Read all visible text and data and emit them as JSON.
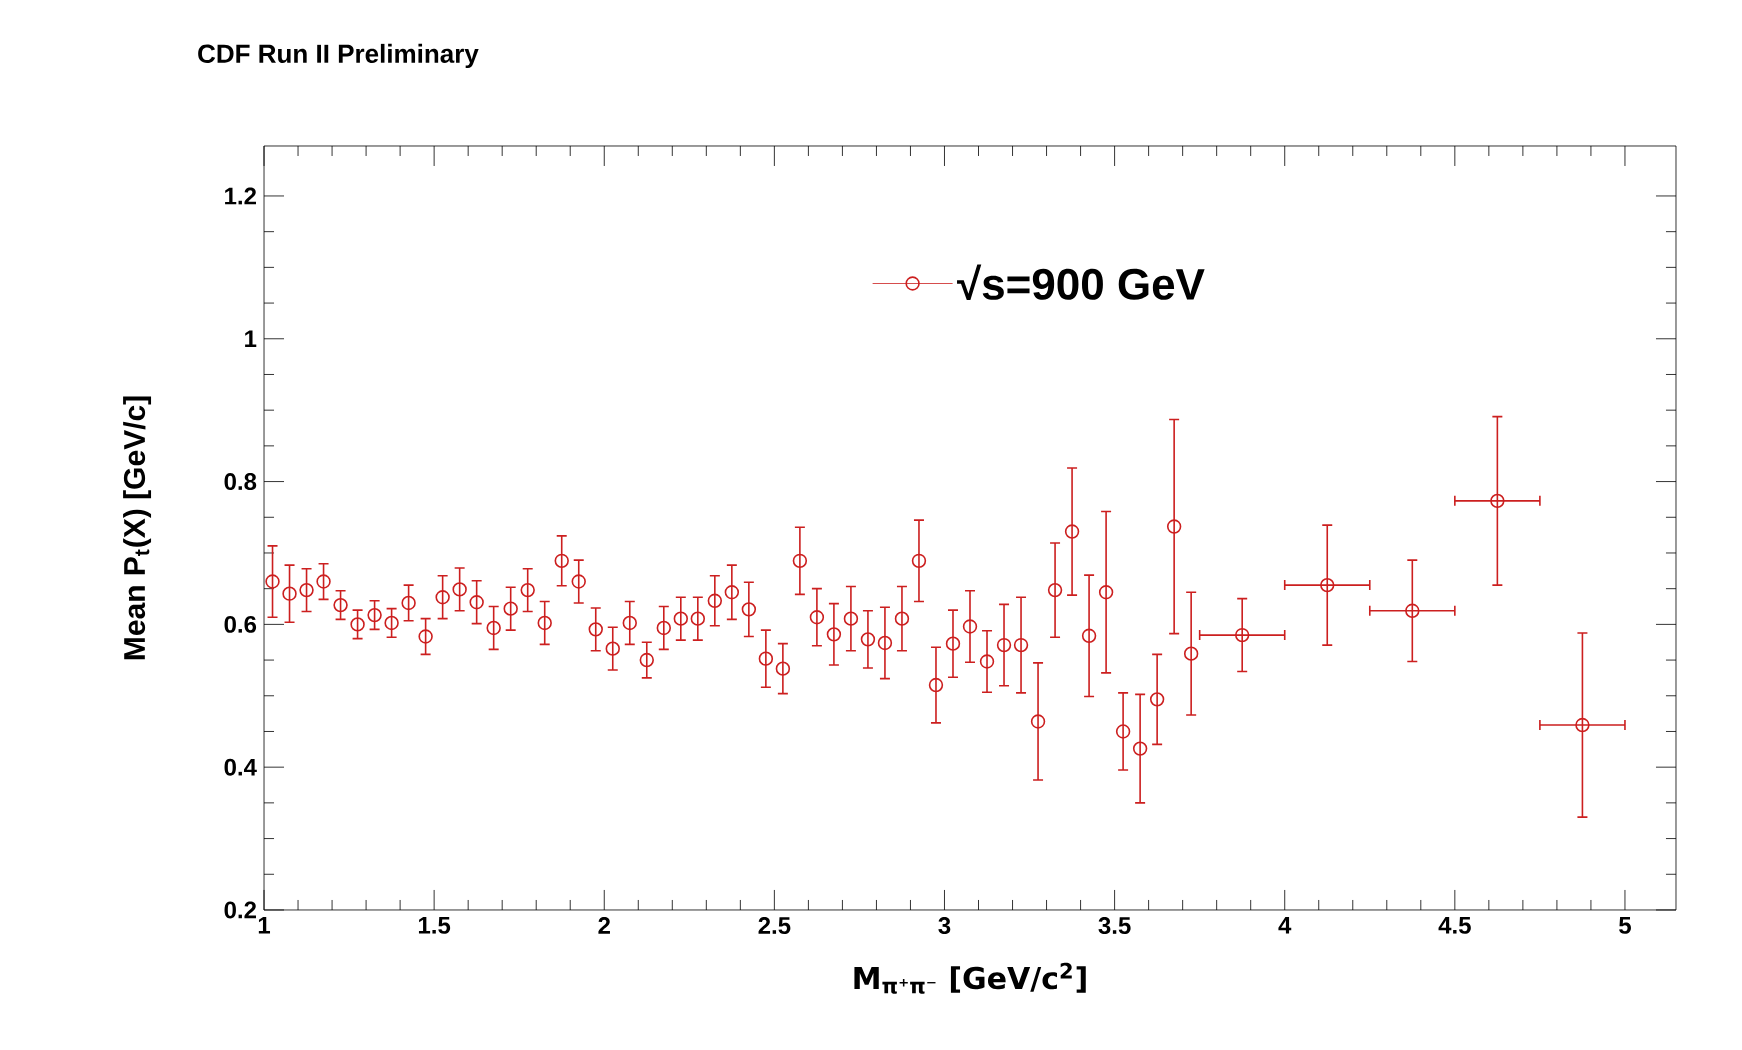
{
  "chart_data": {
    "type": "scatter",
    "title": "CDF Run II Preliminary",
    "xlabel": "M$_{π⁺π⁻}$ [GeV/c$^{2}$]",
    "ylabel": "Mean P$_{t}$(X) [GeV/c]",
    "x": [
      1.025,
      1.075,
      1.125,
      1.175,
      1.225,
      1.275,
      1.325,
      1.375,
      1.425,
      1.475,
      1.525,
      1.575,
      1.625,
      1.675,
      1.725,
      1.775,
      1.825,
      1.875,
      1.925,
      1.975,
      2.025,
      2.075,
      2.125,
      2.175,
      2.225,
      2.275,
      2.325,
      2.375,
      2.425,
      2.475,
      2.525,
      2.575,
      2.625,
      2.675,
      2.725,
      2.775,
      2.825,
      2.875,
      2.925,
      2.975,
      3.025,
      3.075,
      3.125,
      3.175,
      3.225,
      3.275,
      3.325,
      3.375,
      3.425,
      3.475,
      3.525,
      3.575,
      3.625,
      3.675,
      3.725,
      3.875,
      4.125,
      4.375,
      4.625,
      4.875
    ],
    "series": [
      {
        "name": "√s=900 GeV",
        "color": "#cc1f1f",
        "values": [
          0.66,
          0.643,
          0.648,
          0.66,
          0.627,
          0.6,
          0.613,
          0.602,
          0.63,
          0.583,
          0.638,
          0.649,
          0.631,
          0.595,
          0.622,
          0.648,
          0.602,
          0.689,
          0.66,
          0.593,
          0.566,
          0.602,
          0.55,
          0.595,
          0.608,
          0.608,
          0.633,
          0.645,
          0.621,
          0.552,
          0.538,
          0.689,
          0.61,
          0.586,
          0.608,
          0.579,
          0.574,
          0.608,
          0.689,
          0.515,
          0.573,
          0.597,
          0.548,
          0.571,
          0.571,
          0.464,
          0.648,
          0.73,
          0.584,
          0.645,
          0.45,
          0.426,
          0.495,
          0.737,
          0.559,
          0.585,
          0.655,
          0.619,
          0.773,
          0.459
        ],
        "errors": [
          0.05,
          0.04,
          0.03,
          0.025,
          0.02,
          0.02,
          0.02,
          0.02,
          0.025,
          0.025,
          0.03,
          0.03,
          0.03,
          0.03,
          0.03,
          0.03,
          0.03,
          0.035,
          0.03,
          0.03,
          0.03,
          0.03,
          0.025,
          0.03,
          0.03,
          0.03,
          0.035,
          0.038,
          0.038,
          0.04,
          0.035,
          0.047,
          0.04,
          0.043,
          0.045,
          0.04,
          0.05,
          0.045,
          0.057,
          0.053,
          0.047,
          0.05,
          0.043,
          0.057,
          0.067,
          0.082,
          0.066,
          0.089,
          0.085,
          0.113,
          0.054,
          0.076,
          0.063,
          0.15,
          0.086,
          0.051,
          0.084,
          0.071,
          0.118,
          0.129
        ],
        "xerrors": [
          null,
          null,
          null,
          null,
          null,
          null,
          null,
          null,
          null,
          null,
          null,
          null,
          null,
          null,
          null,
          null,
          null,
          null,
          null,
          null,
          null,
          null,
          null,
          null,
          null,
          null,
          null,
          null,
          null,
          null,
          null,
          null,
          null,
          null,
          null,
          null,
          null,
          null,
          null,
          null,
          null,
          null,
          null,
          null,
          null,
          null,
          null,
          null,
          null,
          null,
          null,
          null,
          null,
          null,
          null,
          0.125,
          0.125,
          0.125,
          0.125,
          0.125
        ]
      }
    ],
    "xlim": [
      1,
      5.15
    ],
    "ylim": [
      0.2,
      1.27
    ],
    "xticks": [
      1,
      1.5,
      2,
      2.5,
      3,
      3.5,
      4,
      4.5,
      5
    ],
    "yticks": [
      0.2,
      0.4,
      0.6,
      0.8,
      1,
      1.2
    ],
    "grid": false,
    "legend": "top",
    "marker": "circle"
  }
}
